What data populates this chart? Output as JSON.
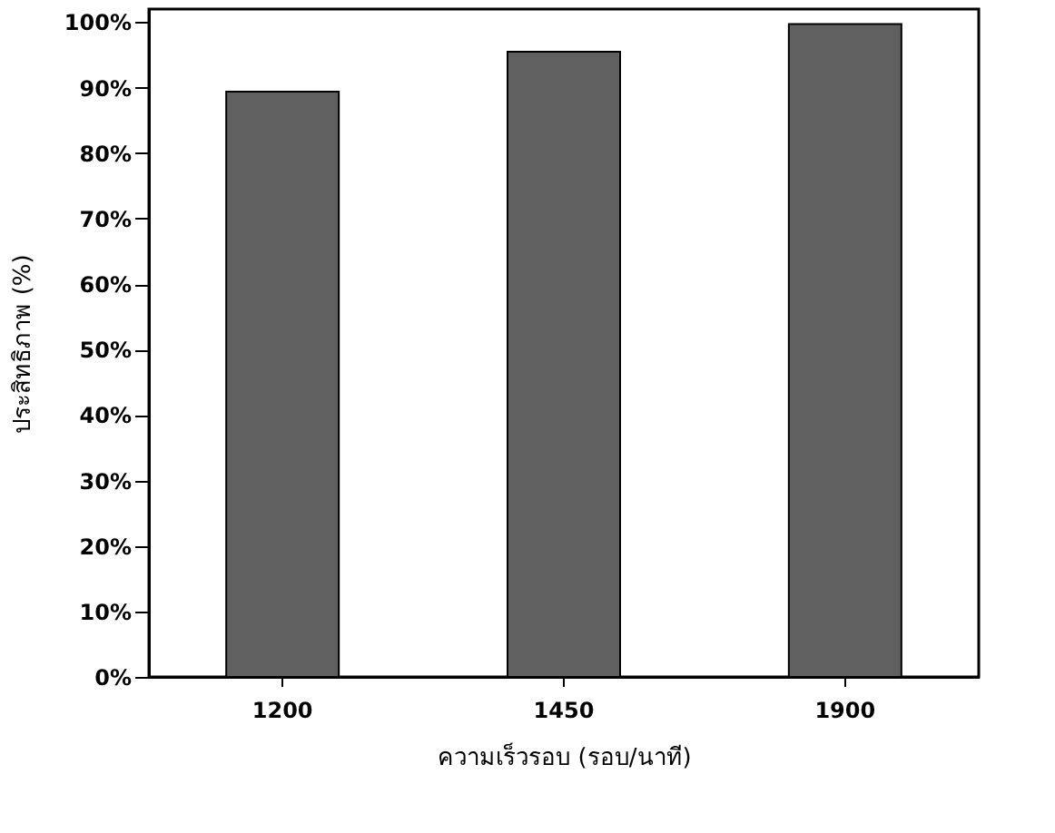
{
  "chart_data": {
    "type": "bar",
    "categories": [
      "1200",
      "1450",
      "1900"
    ],
    "series": [
      {
        "color": "#606060",
        "values": [
          89.4,
          95.5,
          99.7
        ]
      }
    ],
    "xlabel": "ความเร็วรอบ (รอบ/นาที)",
    "ylabel": "ประสิทธิภาพ (%)",
    "ylim": [
      0,
      102
    ],
    "yticks": [
      {
        "value": 0,
        "label": "0%"
      },
      {
        "value": 10,
        "label": "10%"
      },
      {
        "value": 20,
        "label": "20%"
      },
      {
        "value": 30,
        "label": "30%"
      },
      {
        "value": 40,
        "label": "40%"
      },
      {
        "value": 50,
        "label": "50%"
      },
      {
        "value": 60,
        "label": "60%"
      },
      {
        "value": 70,
        "label": "70%"
      },
      {
        "value": 80,
        "label": "80%"
      },
      {
        "value": 90,
        "label": "90%"
      },
      {
        "value": 100,
        "label": "100%"
      }
    ],
    "grid": false,
    "legend": false
  }
}
